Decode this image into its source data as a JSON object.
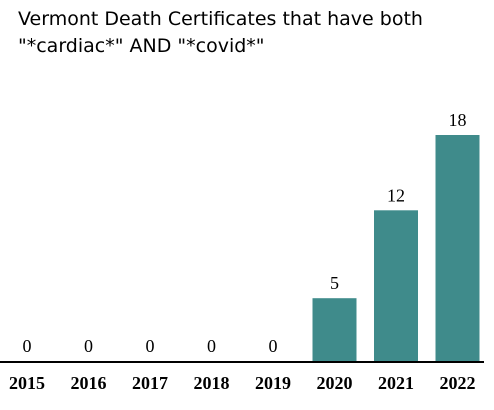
{
  "chart_data": {
    "type": "bar",
    "title_lines": [
      "Vermont Death Certificates that have both",
      "\"*cardiac*\" AND \"*covid*\""
    ],
    "categories": [
      "2015",
      "2016",
      "2017",
      "2018",
      "2019",
      "2020",
      "2021",
      "2022"
    ],
    "values": [
      0,
      0,
      0,
      0,
      0,
      5,
      12,
      18
    ],
    "data_labels": [
      "0",
      "0",
      "0",
      "0",
      "0",
      "5",
      "12",
      "18"
    ],
    "ylim": [
      0,
      18
    ],
    "grid": false,
    "legend": "none",
    "bar_color": "#3f8b8b",
    "axis_color": "#000000"
  }
}
